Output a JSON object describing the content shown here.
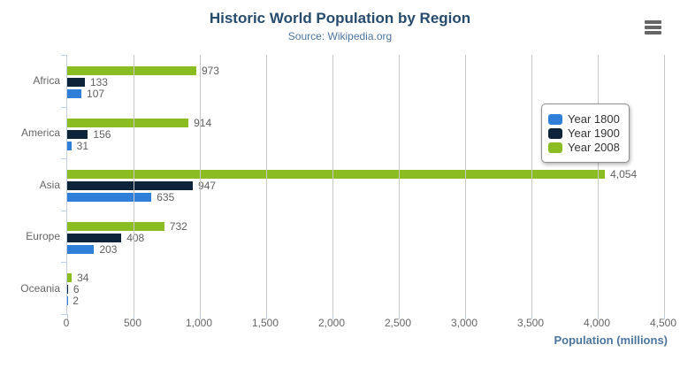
{
  "header": {
    "title": "Historic World Population by Region",
    "subtitle": "Source: Wikipedia.org"
  },
  "menu": {
    "icon": "hamburger-icon"
  },
  "chart_data": {
    "type": "bar",
    "orientation": "horizontal",
    "title": "Historic World Population by Region",
    "subtitle": "Source: Wikipedia.org",
    "categories": [
      "Africa",
      "America",
      "Asia",
      "Europe",
      "Oceania"
    ],
    "series": [
      {
        "name": "Year 1800",
        "color": "#2f7ed8",
        "values": [
          107,
          31,
          635,
          203,
          2
        ]
      },
      {
        "name": "Year 1900",
        "color": "#0d233a",
        "values": [
          133,
          156,
          947,
          408,
          6
        ]
      },
      {
        "name": "Year 2008",
        "color": "#8bbc21",
        "values": [
          973,
          914,
          4054,
          732,
          34
        ]
      }
    ],
    "bar_draw_order_top_to_bottom": [
      "Year 2008",
      "Year 1900",
      "Year 1800"
    ],
    "data_labels": [
      [
        "107",
        "31",
        "635",
        "203",
        "2"
      ],
      [
        "133",
        "156",
        "947",
        "408",
        "6"
      ],
      [
        "973",
        "914",
        "4,054",
        "732",
        "34"
      ]
    ],
    "xlabel": "Population (millions)",
    "xlim": [
      0,
      4500
    ],
    "xticks": [
      0,
      500,
      1000,
      1500,
      2000,
      2500,
      3000,
      3500,
      4000,
      4500
    ],
    "xtick_labels": [
      "0",
      "500",
      "1,000",
      "1,500",
      "2,000",
      "2,500",
      "3,000",
      "3,500",
      "4,000",
      "4,500"
    ],
    "grid": true,
    "legend_position": "right",
    "colors": {
      "title": "#274b6d",
      "subtitle": "#4d759e",
      "axis_title": "#4d759e",
      "axis_labels": "#666666",
      "data_labels": "#606060",
      "axis_line": "#C0D0E0",
      "gridline": "#C8C8C8"
    }
  }
}
